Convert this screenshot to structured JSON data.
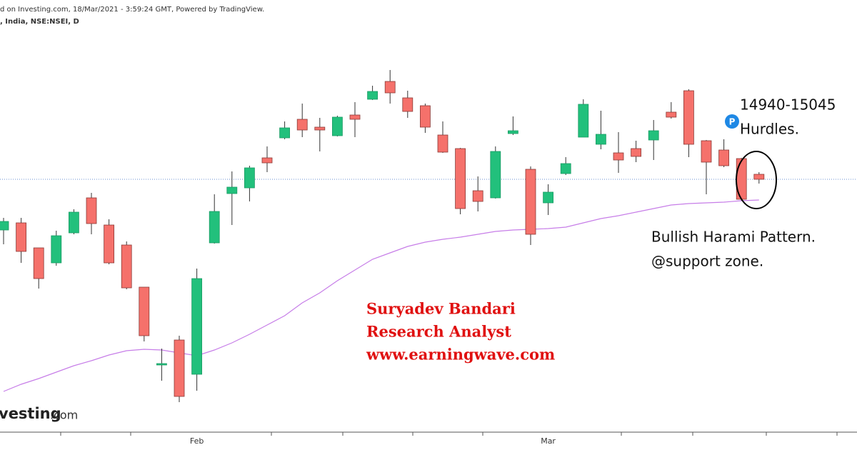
{
  "header": {
    "source": "d on Investing.com, 18/Mar/2021 - 3:59:24 GMT, Powered by TradingView.",
    "symbol": ", India, NSE:NSEI, D"
  },
  "chart_data": {
    "type": "candlestick",
    "categories": [
      null,
      null,
      null,
      null,
      null,
      null,
      null,
      null,
      null,
      null,
      null,
      "Feb",
      null,
      null,
      null,
      null,
      null,
      null,
      null,
      null,
      null,
      null,
      null,
      null,
      null,
      null,
      null,
      null,
      null,
      null,
      null,
      "Mar",
      null,
      null,
      null,
      null,
      null,
      null,
      null,
      null,
      null,
      null,
      null,
      null
    ],
    "open": [
      14512,
      14552,
      14412,
      14328,
      14496,
      14692,
      14540,
      14428,
      14192,
      13756,
      13896,
      13704,
      14440,
      14716,
      14748,
      14916,
      15028,
      15132,
      15088,
      15040,
      15156,
      15244,
      15344,
      15252,
      15208,
      15044,
      14968,
      14732,
      14692,
      15052,
      14852,
      14664,
      14828,
      15032,
      14992,
      14944,
      14968,
      15016,
      15172,
      15292,
      15012,
      14960,
      14912,
      14824
    ],
    "high": [
      14580,
      14580,
      14412,
      14508,
      14628,
      14720,
      14572,
      14448,
      14192,
      13848,
      13920,
      14296,
      14712,
      14840,
      14872,
      14980,
      15120,
      15220,
      15140,
      15152,
      15228,
      15320,
      15408,
      15292,
      15220,
      15120,
      14972,
      14812,
      14980,
      15148,
      14868,
      14768,
      14920,
      15244,
      15180,
      15060,
      15012,
      15128,
      15228,
      15300,
      15016,
      15020,
      14916,
      14836
    ],
    "low": [
      14432,
      14328,
      14184,
      14312,
      14488,
      14488,
      14320,
      14180,
      13888,
      13668,
      13548,
      13612,
      14436,
      14540,
      14672,
      14836,
      15020,
      15032,
      14952,
      15036,
      15032,
      15240,
      15220,
      15140,
      15056,
      14944,
      14600,
      14616,
      14688,
      15044,
      14428,
      14596,
      14820,
      15032,
      14964,
      14832,
      14892,
      14904,
      15136,
      14920,
      14712,
      14864,
      14676,
      14772
    ],
    "close": [
      14560,
      14392,
      14240,
      14480,
      14612,
      14548,
      14328,
      14188,
      13920,
      13764,
      13580,
      14240,
      14616,
      14752,
      14860,
      14888,
      15084,
      15072,
      15072,
      15144,
      15132,
      15288,
      15280,
      15176,
      15088,
      14948,
      14632,
      14672,
      14952,
      15068,
      14488,
      14724,
      14884,
      15216,
      15048,
      14904,
      14924,
      15068,
      15144,
      14992,
      14892,
      14872,
      14684,
      14796
    ],
    "up_color": "#22c07c",
    "down_color": "#f5716b",
    "moving_average": {
      "color": "#c77ee8",
      "values": [
        13608,
        13648,
        13680,
        13716,
        13752,
        13780,
        13812,
        13836,
        13844,
        13840,
        13824,
        13808,
        13840,
        13880,
        13928,
        13980,
        14032,
        14104,
        14160,
        14228,
        14288,
        14348,
        14384,
        14420,
        14444,
        14460,
        14472,
        14488,
        14504,
        14512,
        14516,
        14520,
        14528,
        14552,
        14576,
        14592,
        14612,
        14632,
        14652,
        14660,
        14664,
        14668,
        14676,
        14680
      ]
    },
    "price_line": 14796,
    "ylim": [
      13380,
      15800
    ],
    "annotations": [
      "14940-15045",
      "Hurdles.",
      "Bullish Harami Pattern.",
      "@support zone."
    ],
    "badge": "P",
    "credit": [
      "Suryadev Bandari",
      "Research Analyst",
      "www.earningwave.com"
    ],
    "watermark": [
      "vesting",
      ".com"
    ]
  }
}
